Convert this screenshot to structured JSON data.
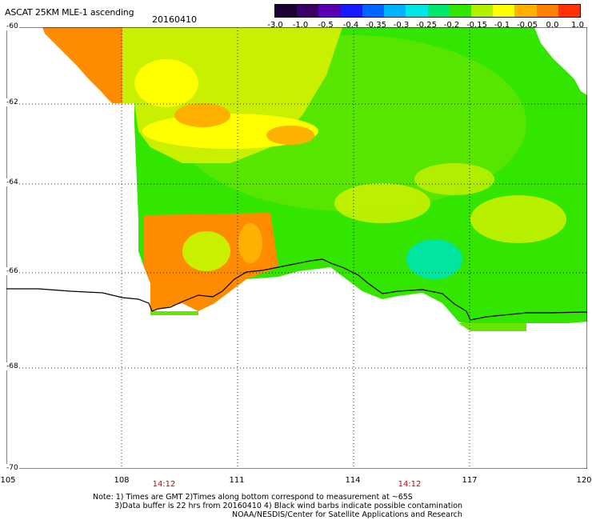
{
  "header": {
    "title": "ASCAT 25KM MLE-1 ascending",
    "date": "20160410"
  },
  "colorbar": {
    "labels": [
      "-3.0",
      "-1.0",
      "-0.5",
      "-0.4",
      "-0.35",
      "-0.3",
      "-0.25",
      "-0.2",
      "-0.15",
      "-0.1",
      "-0.05",
      "0.0",
      "1.0"
    ],
    "colors": [
      "#1a0033",
      "#3b0066",
      "#5a00b3",
      "#1a1aff",
      "#0066ff",
      "#00b3ff",
      "#00e6e6",
      "#00e66e",
      "#33e600",
      "#b3f000",
      "#ffff00",
      "#ffb000",
      "#ff8000",
      "#ff3300"
    ]
  },
  "map": {
    "lat_labels": [
      "-60",
      "-62",
      "-64",
      "-66",
      "-68",
      "-70"
    ],
    "lon_labels": [
      "105",
      "108",
      "111",
      "114",
      "117",
      "120"
    ],
    "time_labels": [
      "14:12",
      "14:12"
    ],
    "colors": {
      "orange": "#ff8c00",
      "light_orange": "#ffb000",
      "yellow": "#ffff00",
      "yellow_green": "#c8f000",
      "green": "#33e600",
      "light_green": "#66e600",
      "teal": "#00e6a0",
      "coast": "#000000",
      "grid": "#000000"
    }
  },
  "notes": {
    "line1": "Note: 1) Times are GMT 2)Times along bottom correspond to measurement at ~65S",
    "line2": "3)Data buffer is 22 hrs from 20160410 4) Black wind barbs indicate possible contamination",
    "line3": "NOAA/NESDIS/Center for Satellite Applications and Research"
  }
}
